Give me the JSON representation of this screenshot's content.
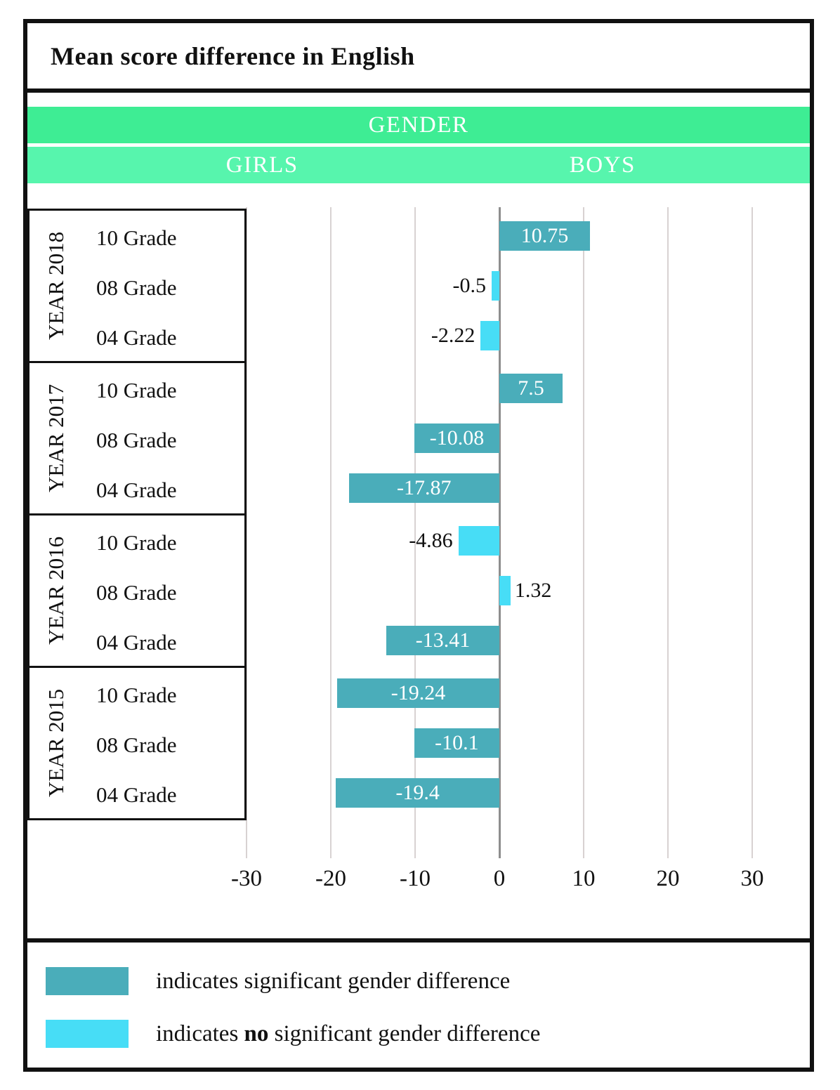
{
  "title": "Mean score difference in English",
  "header": {
    "gender": "GENDER",
    "girls": "GIRLS",
    "boys": "BOYS"
  },
  "colors": {
    "significant": "#4aadba",
    "not_significant": "#47ddf6",
    "band_dark": "#3eed94",
    "band_light": "#57f5ad",
    "ink": "#111111",
    "gridline": "#d8d2d2",
    "zero_line": "#8e8e8e"
  },
  "chart_data": {
    "type": "bar",
    "orientation": "horizontal",
    "title": "Mean score difference in English",
    "x_tick_values": [
      -30,
      -20,
      -10,
      0,
      10,
      20,
      30
    ],
    "x_tick_labels": [
      "-30",
      "-20",
      "-10",
      "0",
      "10",
      "20",
      "30"
    ],
    "xlim": [
      -35,
      35
    ],
    "grid": "vertical",
    "left_header": "GIRLS",
    "right_header": "BOYS",
    "top_header": "GENDER",
    "groups": [
      {
        "year_label": "YEAR 2018",
        "rows": [
          {
            "grade": "10 Grade",
            "value": 10.75,
            "label": "10.75",
            "significant": true
          },
          {
            "grade": "08 Grade",
            "value": -0.5,
            "label": "-0.5",
            "significant": false
          },
          {
            "grade": "04 Grade",
            "value": -2.22,
            "label": "-2.22",
            "significant": false
          }
        ]
      },
      {
        "year_label": "YEAR 2017",
        "rows": [
          {
            "grade": "10 Grade",
            "value": 7.5,
            "label": "7.5",
            "significant": true
          },
          {
            "grade": "08 Grade",
            "value": -10.08,
            "label": "-10.08",
            "significant": true
          },
          {
            "grade": "04 Grade",
            "value": -17.87,
            "label": "-17.87",
            "significant": true
          }
        ]
      },
      {
        "year_label": "YEAR 2016",
        "rows": [
          {
            "grade": "10 Grade",
            "value": -4.86,
            "label": "-4.86",
            "significant": false
          },
          {
            "grade": "08 Grade",
            "value": 1.32,
            "label": "1.32",
            "significant": false
          },
          {
            "grade": "04 Grade",
            "value": -13.41,
            "label": "-13.41",
            "significant": true
          }
        ]
      },
      {
        "year_label": "YEAR 2015",
        "rows": [
          {
            "grade": "10 Grade",
            "value": -19.24,
            "label": "-19.24",
            "significant": true
          },
          {
            "grade": "08 Grade",
            "value": -10.1,
            "label": "-10.1",
            "significant": true
          },
          {
            "grade": "04 Grade",
            "value": -19.4,
            "label": "-19.4",
            "significant": true
          }
        ]
      }
    ]
  },
  "legend": [
    {
      "swatch": "significant",
      "prefix": "indicates significant gender difference",
      "bold": "",
      "suffix": ""
    },
    {
      "swatch": "not_significant",
      "prefix": "indicates ",
      "bold": "no",
      "suffix": " significant gender difference"
    }
  ]
}
